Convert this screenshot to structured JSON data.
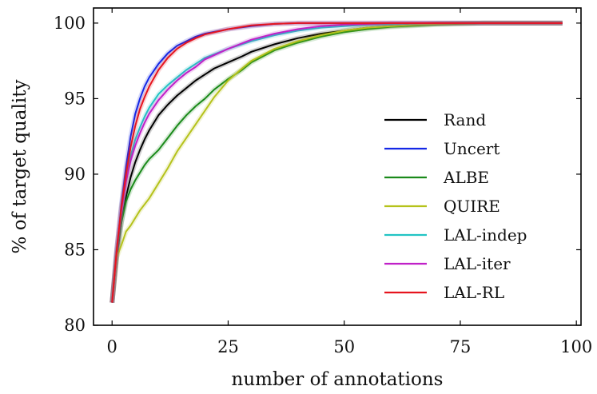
{
  "chart_data": {
    "type": "line",
    "title": "",
    "xlabel": "number of annotations",
    "ylabel": "% of target quality",
    "xlim": [
      -4,
      101
    ],
    "ylim": [
      80,
      101
    ],
    "xticks": [
      0,
      25,
      50,
      75,
      100
    ],
    "yticks": [
      80,
      85,
      90,
      95,
      100
    ],
    "grid": false,
    "legend_position": "center-right",
    "series": [
      {
        "name": "Rand",
        "color": "#000000",
        "x": [
          0,
          1,
          2,
          3,
          4,
          5,
          6,
          7,
          8,
          10,
          12,
          14,
          16,
          18,
          20,
          22,
          25,
          28,
          30,
          35,
          40,
          45,
          50,
          55,
          60,
          70,
          80,
          97
        ],
        "y": [
          81.5,
          84.5,
          86.8,
          88.5,
          89.8,
          90.8,
          91.6,
          92.3,
          92.9,
          93.9,
          94.6,
          95.2,
          95.7,
          96.2,
          96.6,
          97.0,
          97.4,
          97.8,
          98.1,
          98.6,
          99.0,
          99.3,
          99.5,
          99.7,
          99.8,
          99.95,
          100,
          100
        ]
      },
      {
        "name": "Uncert",
        "color": "#1428e6",
        "x": [
          0,
          1,
          2,
          3,
          4,
          5,
          6,
          7,
          8,
          10,
          12,
          14,
          16,
          18,
          20,
          25,
          30,
          35,
          40,
          97
        ],
        "y": [
          81.5,
          85.0,
          88.0,
          90.5,
          92.5,
          94.0,
          95.0,
          95.8,
          96.4,
          97.3,
          98.0,
          98.5,
          98.8,
          99.1,
          99.3,
          99.6,
          99.8,
          99.95,
          100,
          100
        ]
      },
      {
        "name": "ALBE",
        "color": "#1a8a1a",
        "x": [
          0,
          1,
          2,
          3,
          4,
          5,
          6,
          7,
          8,
          10,
          12,
          14,
          16,
          18,
          20,
          22,
          25,
          28,
          30,
          35,
          40,
          45,
          50,
          55,
          60,
          70,
          80,
          97
        ],
        "y": [
          81.5,
          84.6,
          86.8,
          88.2,
          89.0,
          89.6,
          90.1,
          90.6,
          91.0,
          91.6,
          92.4,
          93.2,
          93.9,
          94.5,
          95.0,
          95.6,
          96.3,
          96.9,
          97.4,
          98.2,
          98.7,
          99.1,
          99.4,
          99.6,
          99.75,
          99.9,
          100,
          100
        ]
      },
      {
        "name": "QUIRE",
        "color": "#b5c21b",
        "x": [
          0,
          1,
          2,
          3,
          4,
          5,
          6,
          7,
          8,
          10,
          12,
          14,
          16,
          18,
          20,
          22,
          25,
          28,
          30,
          35,
          40,
          45,
          50,
          55,
          60,
          70,
          80,
          97
        ],
        "y": [
          81.5,
          84.5,
          85.3,
          86.2,
          86.6,
          87.1,
          87.6,
          88.0,
          88.4,
          89.4,
          90.4,
          91.5,
          92.4,
          93.3,
          94.2,
          95.1,
          96.2,
          97.0,
          97.5,
          98.3,
          98.8,
          99.2,
          99.5,
          99.7,
          99.8,
          99.95,
          100,
          100
        ]
      },
      {
        "name": "LAL-indep",
        "color": "#22c4c4",
        "x": [
          0,
          1,
          2,
          3,
          4,
          5,
          6,
          7,
          8,
          10,
          12,
          14,
          16,
          18,
          20,
          25,
          30,
          35,
          40,
          45,
          50,
          55,
          60,
          70,
          97
        ],
        "y": [
          81.5,
          85.0,
          87.8,
          89.8,
          91.2,
          92.3,
          93.1,
          93.8,
          94.4,
          95.3,
          95.9,
          96.4,
          96.9,
          97.3,
          97.7,
          98.3,
          98.8,
          99.2,
          99.5,
          99.7,
          99.8,
          99.9,
          99.95,
          100,
          100
        ]
      },
      {
        "name": "LAL-iter",
        "color": "#c020c8",
        "x": [
          0,
          1,
          2,
          3,
          4,
          5,
          6,
          7,
          8,
          10,
          12,
          14,
          16,
          18,
          20,
          25,
          30,
          35,
          40,
          45,
          50,
          55,
          60,
          70,
          97
        ],
        "y": [
          81.5,
          84.9,
          87.6,
          89.5,
          90.9,
          91.9,
          92.7,
          93.4,
          94.0,
          94.9,
          95.6,
          96.2,
          96.7,
          97.1,
          97.6,
          98.3,
          98.9,
          99.3,
          99.6,
          99.8,
          99.9,
          99.95,
          100,
          100,
          100
        ]
      },
      {
        "name": "LAL-RL",
        "color": "#e6141e",
        "x": [
          0,
          1,
          2,
          3,
          4,
          5,
          6,
          7,
          8,
          10,
          12,
          14,
          16,
          18,
          20,
          25,
          30,
          35,
          40,
          97
        ],
        "y": [
          81.5,
          85.0,
          87.8,
          90.0,
          91.8,
          93.2,
          94.3,
          95.1,
          95.8,
          96.9,
          97.7,
          98.3,
          98.7,
          99.0,
          99.25,
          99.6,
          99.85,
          99.95,
          100,
          100
        ]
      }
    ]
  }
}
